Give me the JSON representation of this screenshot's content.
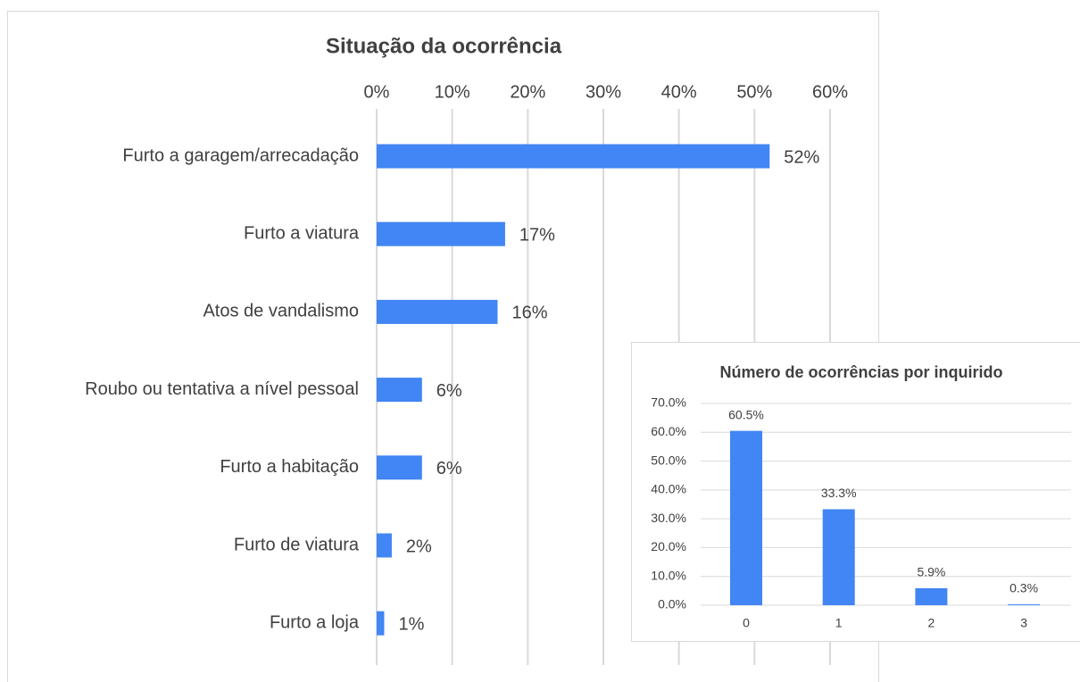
{
  "chart_data": [
    {
      "type": "bar",
      "orientation": "horizontal",
      "title": "Situação da ocorrência",
      "categories": [
        "Furto a garagem/arrecadação",
        "Furto a viatura",
        "Atos de vandalismo",
        "Roubo ou tentativa a nível pessoal",
        "Furto a habitação",
        "Furto de viatura",
        "Furto a loja"
      ],
      "values": [
        52,
        17,
        16,
        6,
        6,
        2,
        1
      ],
      "value_labels": [
        "52%",
        "17%",
        "16%",
        "6%",
        "6%",
        "2%",
        "1%"
      ],
      "color": "#4285f4",
      "xlim": [
        0,
        60
      ],
      "xticks": [
        {
          "value": 0,
          "label": "0%"
        },
        {
          "value": 10,
          "label": "10%"
        },
        {
          "value": 20,
          "label": "20%"
        },
        {
          "value": 30,
          "label": "30%"
        },
        {
          "value": 40,
          "label": "40%"
        },
        {
          "value": 50,
          "label": "50%"
        },
        {
          "value": 60,
          "label": "60%"
        }
      ],
      "grid": true
    },
    {
      "type": "bar",
      "orientation": "vertical",
      "title": "Número de ocorrências por inquirido",
      "categories": [
        "0",
        "1",
        "2",
        "3"
      ],
      "values": [
        60.5,
        33.3,
        5.9,
        0.3
      ],
      "value_labels": [
        "60.5%",
        "33.3%",
        "5.9%",
        "0.3%"
      ],
      "color": "#4285f4",
      "ylim": [
        0,
        70
      ],
      "yticks": [
        {
          "value": 0,
          "label": "0.0%"
        },
        {
          "value": 10,
          "label": "10.0%"
        },
        {
          "value": 20,
          "label": "20.0%"
        },
        {
          "value": 30,
          "label": "30.0%"
        },
        {
          "value": 40,
          "label": "40.0%"
        },
        {
          "value": 50,
          "label": "50.0%"
        },
        {
          "value": 60,
          "label": "60.0%"
        },
        {
          "value": 70,
          "label": "70.0%"
        }
      ],
      "grid": true
    }
  ]
}
